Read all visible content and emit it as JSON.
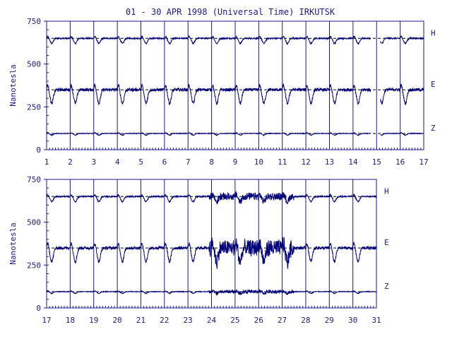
{
  "title": "01 - 30 APR 1998 (Universal Time) IRKUTSK",
  "colors": {
    "ink": "#1a1a8c",
    "trace": "#00007a",
    "background": "#ffffff"
  },
  "chart_data": [
    {
      "type": "line",
      "panel": "top",
      "ylabel": "Nanotesla",
      "ylim": [
        0,
        750
      ],
      "yticks": [
        0,
        250,
        500,
        750
      ],
      "xlim": [
        1,
        17
      ],
      "xticks": [
        "1",
        "2",
        "3",
        "4",
        "5",
        "6",
        "7",
        "8",
        "9",
        "10",
        "11",
        "12",
        "13",
        "14",
        "15",
        "16",
        "17"
      ],
      "grid": "vertical lines at day boundaries",
      "data_gap_days": [
        [
          14.75,
          15.15
        ]
      ],
      "series": [
        {
          "name": "H",
          "baseline": 650,
          "daily_dip": 30,
          "noise": 8
        },
        {
          "name": "E",
          "baseline": 350,
          "daily_dip": 80,
          "noise": 18
        },
        {
          "name": "Z",
          "baseline": 95,
          "daily_dip": 10,
          "noise": 4
        }
      ]
    },
    {
      "type": "line",
      "panel": "bottom",
      "ylabel": "Nanotesla",
      "ylim": [
        0,
        750
      ],
      "yticks": [
        0,
        250,
        500,
        750
      ],
      "xlim": [
        17,
        31
      ],
      "xticks": [
        "17",
        "18",
        "19",
        "20",
        "21",
        "22",
        "23",
        "24",
        "25",
        "26",
        "27",
        "28",
        "29",
        "30",
        "31"
      ],
      "grid": "vertical lines at day boundaries",
      "data_gap_days": [],
      "series": [
        {
          "name": "H",
          "baseline": 650,
          "daily_dip": 30,
          "noise": 8
        },
        {
          "name": "E",
          "baseline": 350,
          "daily_dip": 80,
          "noise": 18
        },
        {
          "name": "Z",
          "baseline": 95,
          "daily_dip": 10,
          "noise": 4
        }
      ]
    }
  ]
}
